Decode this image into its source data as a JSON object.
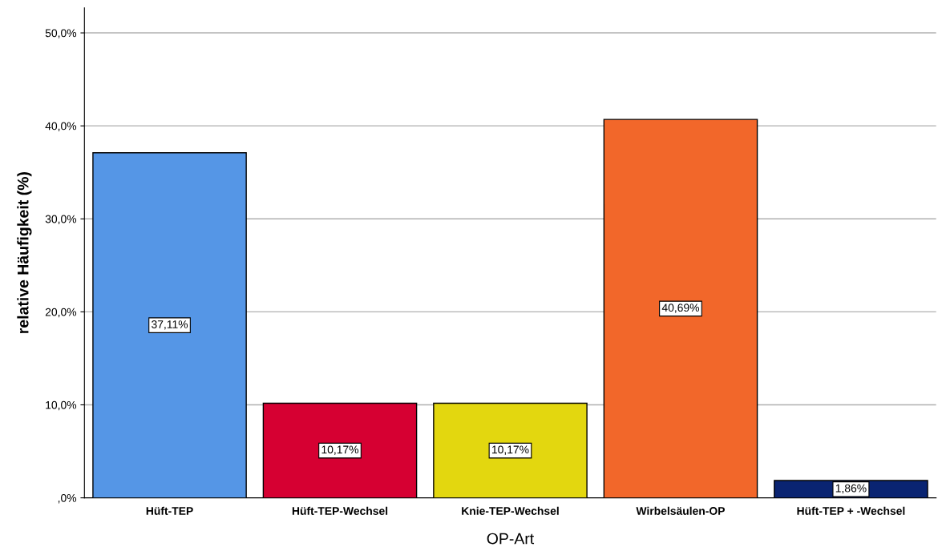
{
  "chart_data": {
    "type": "bar",
    "xlabel": "OP-Art",
    "ylabel": "relative Häufigkeit (%)",
    "categories": [
      "Hüft-TEP",
      "Hüft-TEP-Wechsel",
      "Knie-TEP-Wechsel",
      "Wirbelsäulen-OP",
      "Hüft-TEP + -Wechsel"
    ],
    "values": [
      37.11,
      10.17,
      10.17,
      40.69,
      1.86
    ],
    "value_labels": [
      "37,11%",
      "10,17%",
      "10,17%",
      "40,69%",
      "1,86%"
    ],
    "colors": [
      "#5596e6",
      "#d60032",
      "#e3d70f",
      "#f2672a",
      "#0a2472"
    ],
    "ylim": [
      0,
      52.7
    ],
    "yticks": [
      {
        "value": 0,
        "label": ",0%"
      },
      {
        "value": 10,
        "label": "10,0%"
      },
      {
        "value": 20,
        "label": "20,0%"
      },
      {
        "value": 30,
        "label": "30,0%"
      },
      {
        "value": 40,
        "label": "40,0%"
      },
      {
        "value": 50,
        "label": "50,0%"
      }
    ],
    "grid": "y",
    "legend": false
  }
}
